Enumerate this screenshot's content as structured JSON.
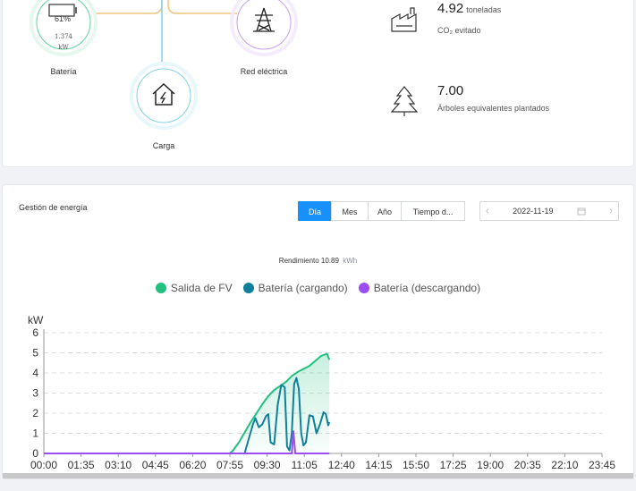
{
  "flow": {
    "battery": {
      "percent": "61%",
      "value": "1.374",
      "unit": "kW",
      "label": "Batería"
    },
    "grid": {
      "label": "Red eléctrica"
    },
    "load": {
      "label": "Carga"
    }
  },
  "stats": [
    {
      "value": "4.92",
      "unit": "toneladas",
      "desc": "CO₂ evitado",
      "icon": "factory-icon"
    },
    {
      "value": "7.00",
      "unit": "",
      "desc": "Árboles equivalentes plantados",
      "icon": "tree-icon"
    }
  ],
  "energy": {
    "title": "Gestión de energía",
    "tabs": [
      {
        "label": "Día",
        "active": true
      },
      {
        "label": "Mes",
        "active": false
      },
      {
        "label": "Año",
        "active": false
      },
      {
        "label": "Tiempo d...",
        "active": false
      }
    ],
    "date": "2022-11-19",
    "yield_label": "Rendimiento 10.89",
    "yield_unit": "kWh"
  },
  "colors": {
    "pv": "#22c07f",
    "battery_charging": "#0f7f9b",
    "battery_discharging": "#9b4df0",
    "accent": "#1990ff"
  },
  "chart_data": {
    "type": "line",
    "ylabel": "kW",
    "ylim": [
      0,
      6
    ],
    "yticks": [
      0,
      1,
      2,
      3,
      4,
      5,
      6
    ],
    "xticks": [
      "00:00",
      "01:35",
      "03:10",
      "04:45",
      "06:20",
      "07:55",
      "09:30",
      "11:05",
      "12:40",
      "14:15",
      "15:50",
      "17:25",
      "19:00",
      "20:35",
      "22:10",
      "23:45"
    ],
    "grid": true,
    "legend_position": "top-center",
    "series": [
      {
        "name": "Salida de FV",
        "color": "#22c07f",
        "area": true,
        "points": [
          [
            0,
            0
          ],
          [
            7.9,
            0
          ],
          [
            8.05,
            0.15
          ],
          [
            8.3,
            0.55
          ],
          [
            8.55,
            1.05
          ],
          [
            8.8,
            1.55
          ],
          [
            9.05,
            2.0
          ],
          [
            9.3,
            2.45
          ],
          [
            9.55,
            2.85
          ],
          [
            9.8,
            3.15
          ],
          [
            10.05,
            3.35
          ],
          [
            10.3,
            3.55
          ],
          [
            10.55,
            3.85
          ],
          [
            10.8,
            4.05
          ],
          [
            11.05,
            4.2
          ],
          [
            11.3,
            4.35
          ],
          [
            11.55,
            4.6
          ],
          [
            11.8,
            4.85
          ],
          [
            12.05,
            4.95
          ],
          [
            12.15,
            4.65
          ]
        ]
      },
      {
        "name": "Batería (cargando)",
        "color": "#0f7f9b",
        "area": false,
        "points": [
          [
            0,
            0
          ],
          [
            8.55,
            0
          ],
          [
            8.6,
            0.25
          ],
          [
            8.75,
            0.85
          ],
          [
            8.9,
            1.45
          ],
          [
            9.0,
            1.75
          ],
          [
            9.15,
            1.3
          ],
          [
            9.3,
            1.45
          ],
          [
            9.45,
            1.85
          ],
          [
            9.55,
            1.95
          ],
          [
            9.65,
            0.55
          ],
          [
            9.8,
            0.45
          ],
          [
            9.95,
            2.4
          ],
          [
            10.1,
            3.4
          ],
          [
            10.25,
            3.3
          ],
          [
            10.35,
            0.35
          ],
          [
            10.45,
            0.15
          ],
          [
            10.55,
            1.0
          ],
          [
            10.65,
            3.45
          ],
          [
            10.75,
            3.75
          ],
          [
            10.85,
            3.2
          ],
          [
            10.95,
            1.0
          ],
          [
            11.05,
            0.4
          ],
          [
            11.15,
            0.55
          ],
          [
            11.3,
            1.9
          ],
          [
            11.45,
            1.85
          ],
          [
            11.6,
            1.0
          ],
          [
            11.75,
            1.45
          ],
          [
            11.9,
            2.05
          ],
          [
            12.0,
            1.95
          ],
          [
            12.1,
            1.4
          ],
          [
            12.15,
            1.55
          ]
        ]
      },
      {
        "name": "Batería (descargando)",
        "color": "#9b4df0",
        "area": false,
        "points": [
          [
            0,
            0
          ],
          [
            10.55,
            0
          ],
          [
            10.62,
            1.1
          ],
          [
            10.7,
            0
          ],
          [
            12.15,
            0
          ]
        ]
      }
    ]
  }
}
